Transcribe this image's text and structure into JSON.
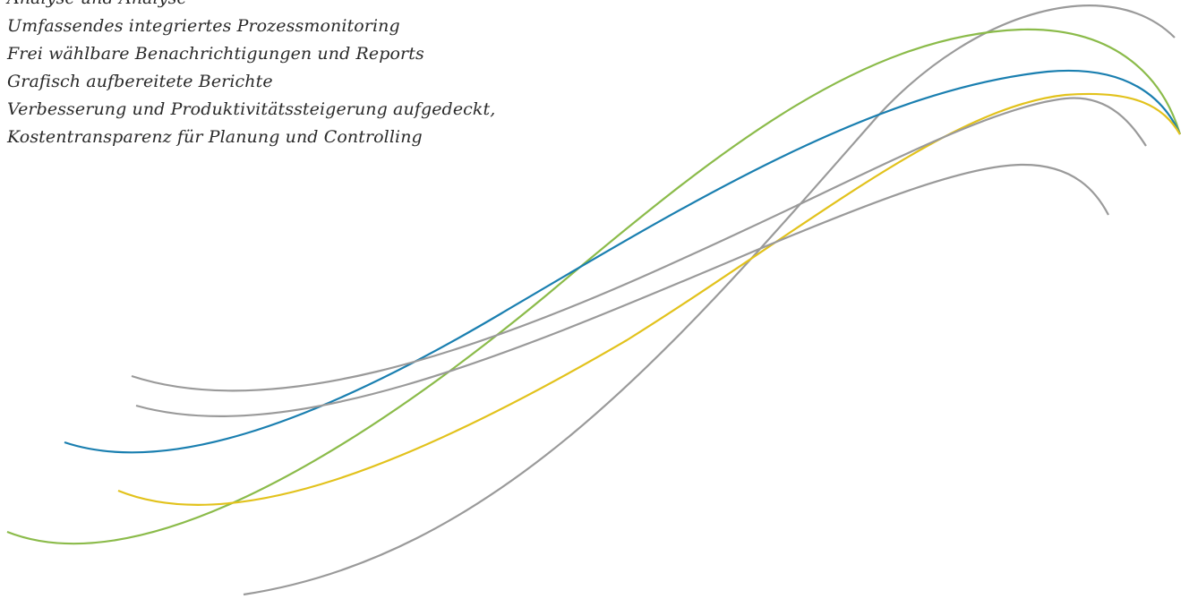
{
  "text": {
    "lines": [
      "Analyse und Analyse",
      "Umfassendes integriertes Prozessmonitoring",
      "Frei wählbare Benachrichtigungen und Reports",
      "Grafisch aufbereitete Berichte",
      "Verbesserung und Produktivitätssteigerung aufgedeckt,",
      "Kostentransparenz für Planung und Controlling"
    ]
  },
  "colors": {
    "text": "#2a2a2a",
    "gray": "#9a9a9a",
    "green": "#8bbb4a",
    "blue": "#1a7fb0",
    "yellow": "#e2c21c"
  }
}
